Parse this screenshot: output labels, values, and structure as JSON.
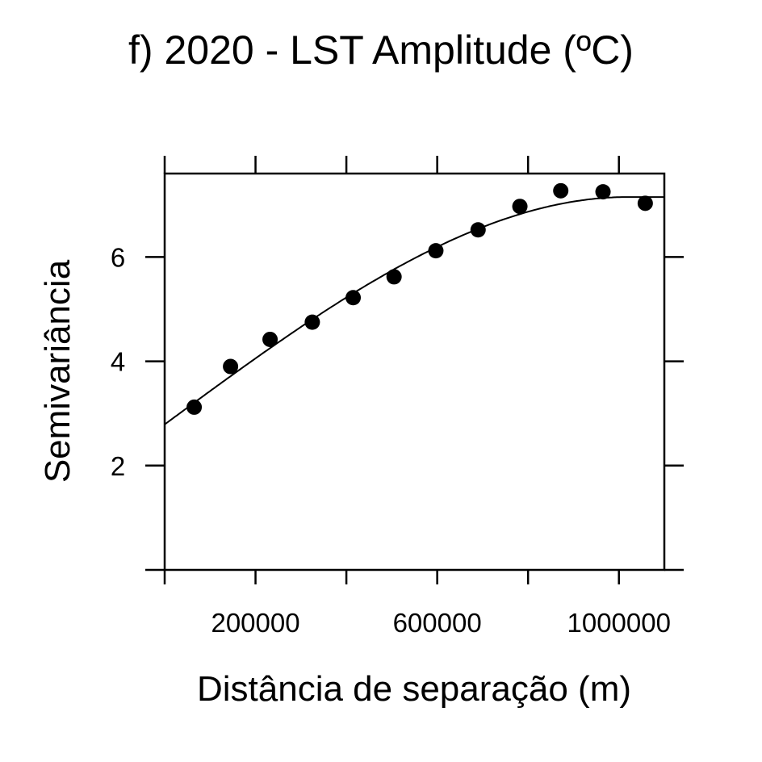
{
  "chart_data": {
    "type": "scatter",
    "title": "f) 2020 - LST Amplitude (ºC)",
    "xlabel": "Distância de separação (m)",
    "ylabel": "Semivariância",
    "xlim": [
      0,
      1100000
    ],
    "ylim": [
      0,
      7.6
    ],
    "x_ticks": [
      0,
      200000,
      400000,
      600000,
      800000,
      1000000
    ],
    "x_tick_labels": [
      "200000",
      "600000",
      "1000000"
    ],
    "x_tick_labels_at": [
      200000,
      600000,
      1000000
    ],
    "y_ticks": [
      2,
      4,
      6
    ],
    "y_tick_labels": [
      "2",
      "4",
      "6"
    ],
    "grid": false,
    "points": {
      "x": [
        65000,
        145000,
        232000,
        325000,
        415000,
        505000,
        597000,
        690000,
        782000,
        872000,
        965000,
        1058000
      ],
      "y": [
        3.12,
        3.9,
        4.42,
        4.75,
        5.22,
        5.62,
        6.12,
        6.52,
        6.97,
        7.27,
        7.25,
        7.03
      ]
    },
    "model_curve": {
      "type": "spherical",
      "nugget": 2.79,
      "sill": 7.15,
      "range": 1020000
    }
  }
}
